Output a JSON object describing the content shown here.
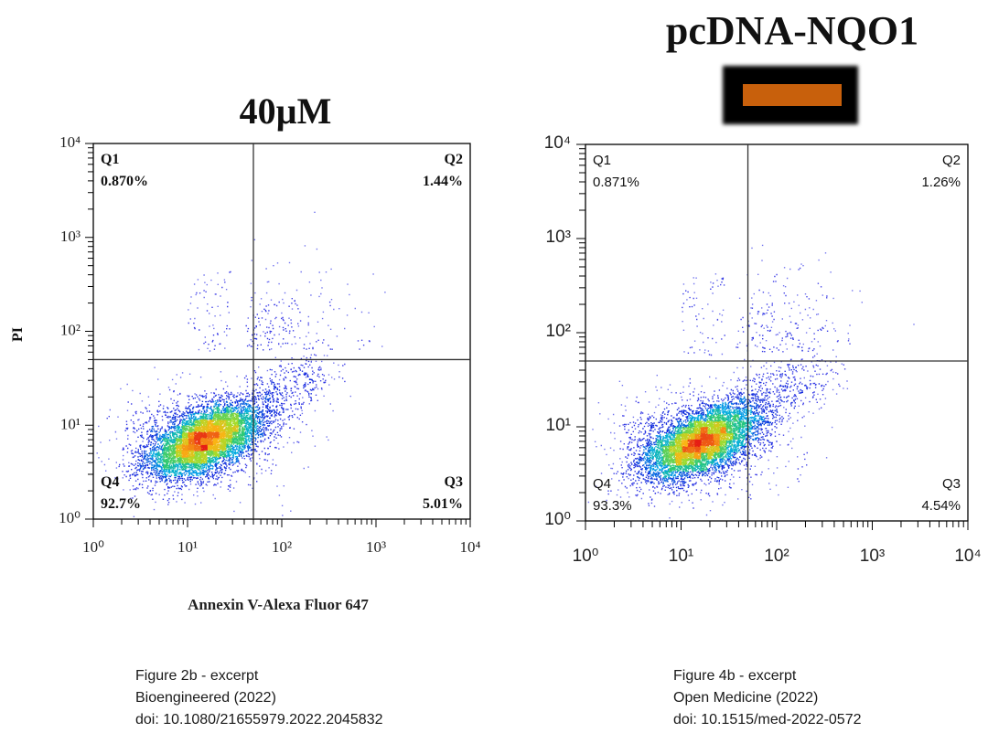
{
  "left_panel": {
    "title": "40µM",
    "y_label": "PI",
    "x_label": "Annexin V-Alexa Fluor 647",
    "caption": [
      "Figure 2b - excerpt",
      "Bioengineered (2022)",
      "doi: 10.1080/21655979.2022.2045832"
    ]
  },
  "right_panel": {
    "title": "pcDNA-NQO1",
    "band_color": "#c8600c",
    "caption": [
      "Figure 4b - excerpt",
      "Open Medicine (2022)",
      "doi: 10.1515/med-2022-0572"
    ]
  },
  "chart_data": [
    {
      "type": "scatter",
      "title": "40µM",
      "xlabel": "Annexin V-Alexa Fluor 647",
      "ylabel": "PI",
      "x_scale": "log",
      "y_scale": "log",
      "xlim": [
        1,
        10000
      ],
      "ylim": [
        1,
        10000
      ],
      "x_ticks": [
        1,
        10,
        100,
        1000,
        10000
      ],
      "y_ticks": [
        1,
        10,
        100,
        1000,
        10000
      ],
      "gate_x": 50,
      "gate_y": 50,
      "quadrants": [
        {
          "name": "Q1",
          "percent": "0.870%"
        },
        {
          "name": "Q2",
          "percent": "1.44%"
        },
        {
          "name": "Q3",
          "percent": "5.01%"
        },
        {
          "name": "Q4",
          "percent": "92.7%"
        }
      ],
      "population_center": [
        15,
        7
      ],
      "font": "serif-bold"
    },
    {
      "type": "scatter",
      "title": "pcDNA-NQO1",
      "xlabel": "",
      "ylabel": "",
      "x_scale": "log",
      "y_scale": "log",
      "xlim": [
        1,
        10000
      ],
      "ylim": [
        1,
        10000
      ],
      "x_ticks": [
        1,
        10,
        100,
        1000,
        10000
      ],
      "y_ticks": [
        1,
        10,
        100,
        1000,
        10000
      ],
      "gate_x": 50,
      "gate_y": 50,
      "quadrants": [
        {
          "name": "Q1",
          "percent": "0.871%"
        },
        {
          "name": "Q2",
          "percent": "1.26%"
        },
        {
          "name": "Q3",
          "percent": "4.54%"
        },
        {
          "name": "Q4",
          "percent": "93.3%"
        }
      ],
      "population_center": [
        16,
        7
      ],
      "font": "sans"
    }
  ]
}
